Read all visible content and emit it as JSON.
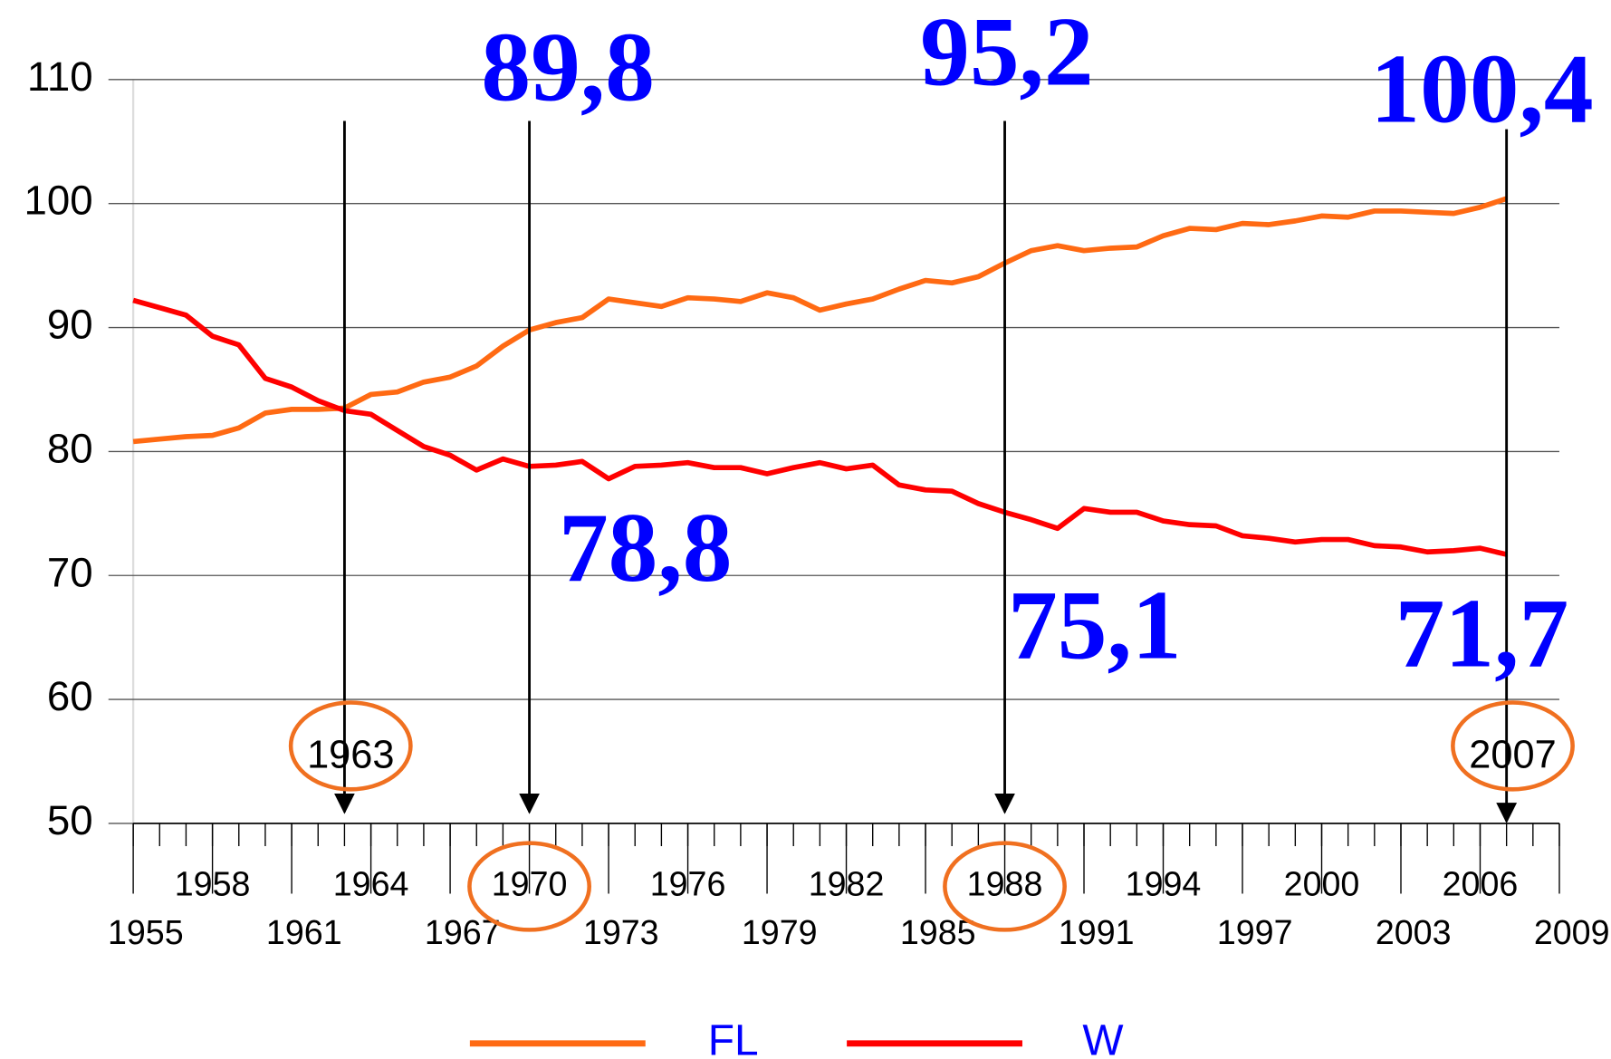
{
  "chart_data": {
    "type": "line",
    "x": [
      1955,
      1956,
      1957,
      1958,
      1959,
      1960,
      1961,
      1962,
      1963,
      1964,
      1965,
      1966,
      1967,
      1968,
      1969,
      1970,
      1971,
      1972,
      1973,
      1974,
      1975,
      1976,
      1977,
      1978,
      1979,
      1980,
      1981,
      1982,
      1983,
      1984,
      1985,
      1986,
      1987,
      1988,
      1989,
      1990,
      1991,
      1992,
      1993,
      1994,
      1995,
      1996,
      1997,
      1998,
      1999,
      2000,
      2001,
      2002,
      2003,
      2004,
      2005,
      2006,
      2007
    ],
    "series": [
      {
        "name": "FL",
        "color": "#ff6a13",
        "values": [
          80.8,
          81.0,
          81.2,
          81.3,
          81.9,
          83.1,
          83.4,
          83.4,
          83.5,
          84.6,
          84.8,
          85.6,
          86.0,
          86.9,
          88.5,
          89.8,
          90.4,
          90.8,
          92.3,
          92.0,
          91.7,
          92.4,
          92.3,
          92.1,
          92.8,
          92.4,
          91.4,
          91.9,
          92.3,
          93.1,
          93.8,
          93.6,
          94.1,
          95.2,
          96.2,
          96.6,
          96.2,
          96.4,
          96.5,
          97.4,
          98.0,
          97.9,
          98.4,
          98.3,
          98.6,
          99.0,
          98.9,
          99.4,
          99.4,
          99.3,
          99.2,
          99.7,
          100.4
        ],
        "value_labels": [
          null,
          null,
          null,
          null,
          null,
          null,
          null,
          null,
          null,
          null,
          null,
          null,
          null,
          null,
          null,
          "89,8",
          null,
          null,
          null,
          null,
          null,
          null,
          null,
          null,
          null,
          null,
          null,
          null,
          null,
          null,
          null,
          null,
          null,
          "95,2",
          null,
          null,
          null,
          null,
          null,
          null,
          null,
          null,
          null,
          null,
          null,
          null,
          null,
          null,
          null,
          null,
          null,
          null,
          "100,4"
        ]
      },
      {
        "name": "W",
        "color": "#ff0000",
        "values": [
          92.2,
          91.6,
          91.0,
          89.3,
          88.6,
          85.9,
          85.2,
          84.1,
          83.3,
          83.0,
          81.7,
          80.4,
          79.7,
          78.5,
          79.4,
          78.8,
          78.9,
          79.2,
          77.8,
          78.8,
          78.9,
          79.1,
          78.7,
          78.7,
          78.2,
          78.7,
          79.1,
          78.6,
          78.9,
          77.3,
          76.9,
          76.8,
          75.8,
          75.1,
          74.5,
          73.8,
          75.4,
          75.1,
          75.1,
          74.4,
          74.1,
          74.0,
          73.2,
          73.0,
          72.7,
          72.9,
          72.9,
          72.4,
          72.3,
          71.9,
          72.0,
          72.2,
          71.7
        ],
        "value_labels": [
          null,
          null,
          null,
          null,
          null,
          null,
          null,
          null,
          null,
          null,
          null,
          null,
          null,
          null,
          null,
          "78,8",
          null,
          null,
          null,
          null,
          null,
          null,
          null,
          null,
          null,
          null,
          null,
          null,
          null,
          null,
          null,
          null,
          null,
          "75,1",
          null,
          null,
          null,
          null,
          null,
          null,
          null,
          null,
          null,
          null,
          null,
          null,
          null,
          null,
          null,
          null,
          null,
          null,
          "71,7"
        ]
      }
    ],
    "highlight_years": [
      1963,
      1970,
      1988,
      2007
    ],
    "xlim": [
      1955,
      2009
    ],
    "xticks": [
      1955,
      1958,
      1961,
      1964,
      1967,
      1970,
      1973,
      1976,
      1979,
      1982,
      1985,
      1988,
      1991,
      1994,
      1997,
      2000,
      2003,
      2006,
      2009
    ],
    "ylim": [
      50,
      110
    ],
    "yticks": [
      50,
      60,
      70,
      80,
      90,
      100,
      110
    ],
    "grid": true,
    "legend": "bottom"
  }
}
